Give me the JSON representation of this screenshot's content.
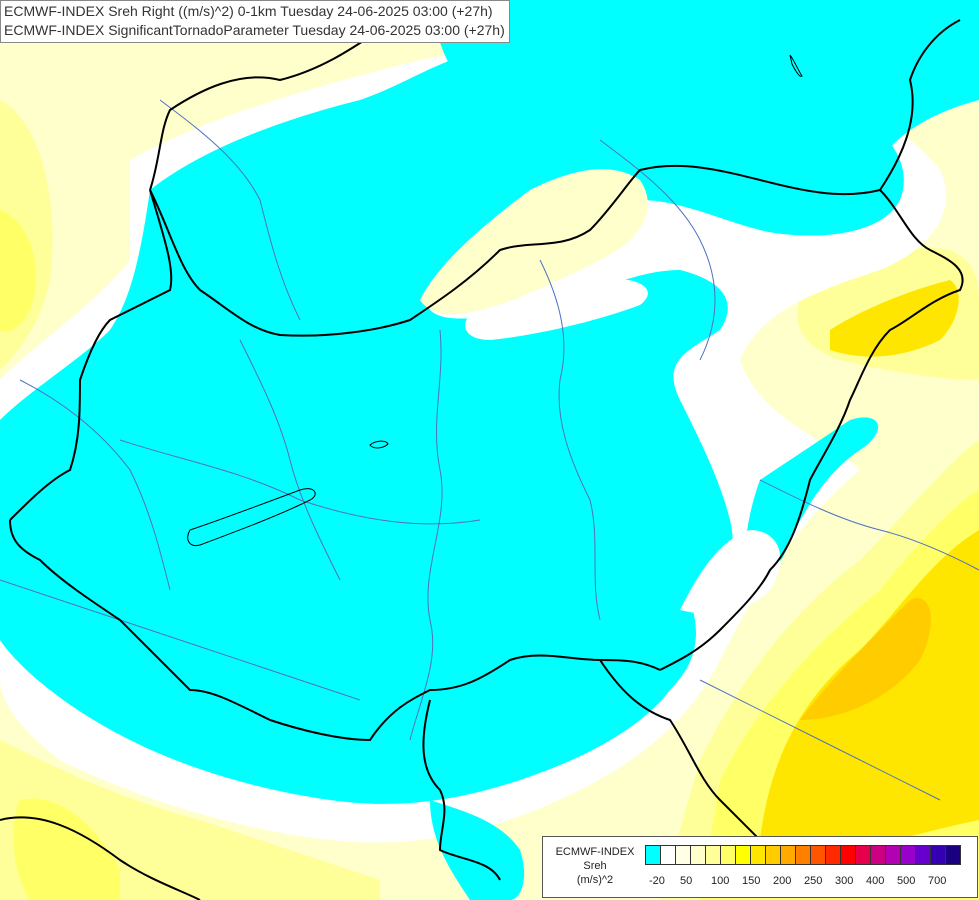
{
  "title": {
    "line1": "ECMWF-INDEX Sreh Right ((m/s)^2) 0-1km Tuesday 24-06-2025 03:00 (+27h)",
    "line2": "ECMWF-INDEX SignificantTornadoParameter Tuesday 24-06-2025 03:00 (+27h)"
  },
  "legend": {
    "title_line1": "ECMWF-INDEX",
    "title_line2": "Sreh",
    "title_line3": "(m/s)^2",
    "colors": [
      "#00ffff",
      "#ffffff",
      "#ffffe6",
      "#ffffcc",
      "#ffff99",
      "#ffff66",
      "#ffff00",
      "#ffe600",
      "#ffcc00",
      "#ffaa00",
      "#ff8000",
      "#ff5500",
      "#ff2a00",
      "#ff0000",
      "#e6004c",
      "#cc0080",
      "#b300b3",
      "#9900cc",
      "#6600cc",
      "#3300b3",
      "#1a0080"
    ],
    "ticks": [
      "-20",
      "50",
      "100",
      "150",
      "200",
      "250",
      "300",
      "400",
      "500",
      "700"
    ]
  },
  "map_colors": {
    "cyan": "#00ffff",
    "white": "#ffffff",
    "pale_yellow": "#ffffcc",
    "light_yellow": "#ffff99",
    "yellow": "#ffff66",
    "bright_yellow": "#ffff00",
    "gold": "#ffe600",
    "orange": "#ffcc00",
    "border": "#000000",
    "river": "#5070c0"
  }
}
